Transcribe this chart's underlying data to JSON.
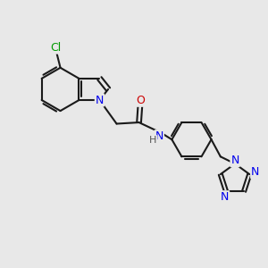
{
  "background_color": "#e8e8e8",
  "bond_color": "#1a1a1a",
  "atom_colors": {
    "N": "#0000ee",
    "O": "#cc0000",
    "Cl": "#009900",
    "C": "#1a1a1a",
    "H": "#555555"
  },
  "figsize": [
    3.0,
    3.0
  ],
  "dpi": 100
}
